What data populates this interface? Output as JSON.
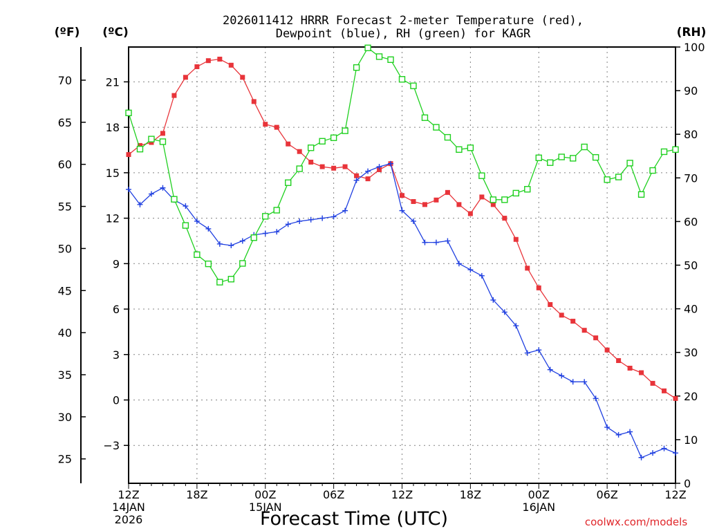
{
  "title_line1": "2026011412 HRRR Forecast 2-meter Temperature (red),",
  "title_line2": "Dewpoint (blue), RH (green) for KAGR",
  "credit": "coolwx.com/models",
  "chart_data": {
    "type": "line",
    "xlabel": "Forecast Time (UTC)",
    "x_hours": [
      0,
      1,
      2,
      3,
      4,
      5,
      6,
      7,
      8,
      9,
      10,
      11,
      12,
      13,
      14,
      15,
      16,
      17,
      18,
      19,
      20,
      21,
      22,
      23,
      24,
      25,
      26,
      27,
      28,
      29,
      30,
      31,
      32,
      33,
      34,
      35,
      36,
      37,
      38,
      39,
      40,
      41,
      42,
      43,
      44,
      45,
      46,
      47,
      48
    ],
    "x_ticks": [
      {
        "hour": 0,
        "labels": [
          "12Z",
          "14JAN",
          "2026"
        ]
      },
      {
        "hour": 6,
        "labels": [
          "18Z"
        ]
      },
      {
        "hour": 12,
        "labels": [
          "00Z",
          "15JAN"
        ]
      },
      {
        "hour": 18,
        "labels": [
          "06Z"
        ]
      },
      {
        "hour": 24,
        "labels": [
          "12Z"
        ]
      },
      {
        "hour": 30,
        "labels": [
          "18Z"
        ]
      },
      {
        "hour": 36,
        "labels": [
          "00Z",
          "16JAN"
        ]
      },
      {
        "hour": 42,
        "labels": [
          "06Z"
        ]
      },
      {
        "hour": 48,
        "labels": [
          "12Z"
        ]
      }
    ],
    "xlim": [
      0,
      48
    ],
    "left_axis_c": {
      "unit": "(ºC)",
      "ylim": [
        -5.5,
        23.3
      ],
      "ticks": [
        21,
        18,
        15,
        12,
        9,
        6,
        3,
        0,
        -3
      ]
    },
    "left_axis_f": {
      "unit": "(ºF)",
      "ticks": [
        70,
        65,
        60,
        55,
        50,
        45,
        40,
        35,
        30,
        25
      ]
    },
    "right_axis_rh": {
      "unit": "(RH)",
      "ylim": [
        0,
        100
      ],
      "ticks": [
        100,
        90,
        80,
        70,
        60,
        50,
        40,
        30,
        20,
        10,
        0
      ]
    },
    "grid": true,
    "series": [
      {
        "name": "Temperature (red)",
        "axis": "C",
        "color": "#e8343a",
        "marker": "filled-square",
        "values": [
          16.2,
          16.8,
          17.0,
          17.6,
          20.1,
          21.3,
          22.0,
          22.4,
          22.5,
          22.1,
          21.3,
          19.7,
          18.2,
          18.0,
          16.9,
          16.4,
          15.7,
          15.4,
          15.3,
          15.4,
          14.8,
          14.6,
          15.2,
          15.6,
          13.5,
          13.1,
          12.9,
          13.2,
          13.7,
          12.9,
          12.3,
          13.4,
          12.9,
          12.0,
          10.6,
          8.7,
          7.4,
          6.3,
          5.6,
          5.2,
          4.6,
          4.1,
          3.3,
          2.6,
          2.1,
          1.8,
          1.1,
          0.6,
          0.1
        ]
      },
      {
        "name": "Dewpoint (blue)",
        "axis": "C",
        "color": "#1f3fe0",
        "marker": "plus",
        "values": [
          13.9,
          12.9,
          13.6,
          14.0,
          13.2,
          12.8,
          11.8,
          11.3,
          10.3,
          10.2,
          10.5,
          10.9,
          11.0,
          11.1,
          11.6,
          11.8,
          11.9,
          12.0,
          12.1,
          12.5,
          14.5,
          15.1,
          15.4,
          15.6,
          12.5,
          11.8,
          10.4,
          10.4,
          10.5,
          9.0,
          8.6,
          8.2,
          6.6,
          5.8,
          4.9,
          3.1,
          3.3,
          2.0,
          1.6,
          1.2,
          1.2,
          0.1,
          -1.8,
          -2.3,
          -2.1,
          -3.8,
          -3.5,
          -3.2,
          -3.5
        ]
      },
      {
        "name": "RH (green)",
        "axis": "RH",
        "color": "#1fd01f",
        "marker": "open-square",
        "values": [
          84.9,
          76.6,
          78.9,
          78.3,
          65.1,
          59.1,
          52.4,
          50.3,
          46.1,
          46.8,
          50.4,
          56.3,
          61.2,
          62.6,
          68.9,
          72.1,
          76.9,
          78.4,
          79.2,
          80.8,
          95.3,
          99.8,
          97.8,
          97.1,
          92.6,
          91.1,
          83.8,
          81.6,
          79.3,
          76.5,
          76.9,
          70.5,
          65.0,
          65.0,
          66.5,
          67.4,
          74.6,
          73.5,
          74.8,
          74.5,
          77.1,
          74.7,
          69.6,
          70.2,
          73.4,
          66.2,
          71.7,
          76.0,
          76.5
        ]
      }
    ]
  }
}
